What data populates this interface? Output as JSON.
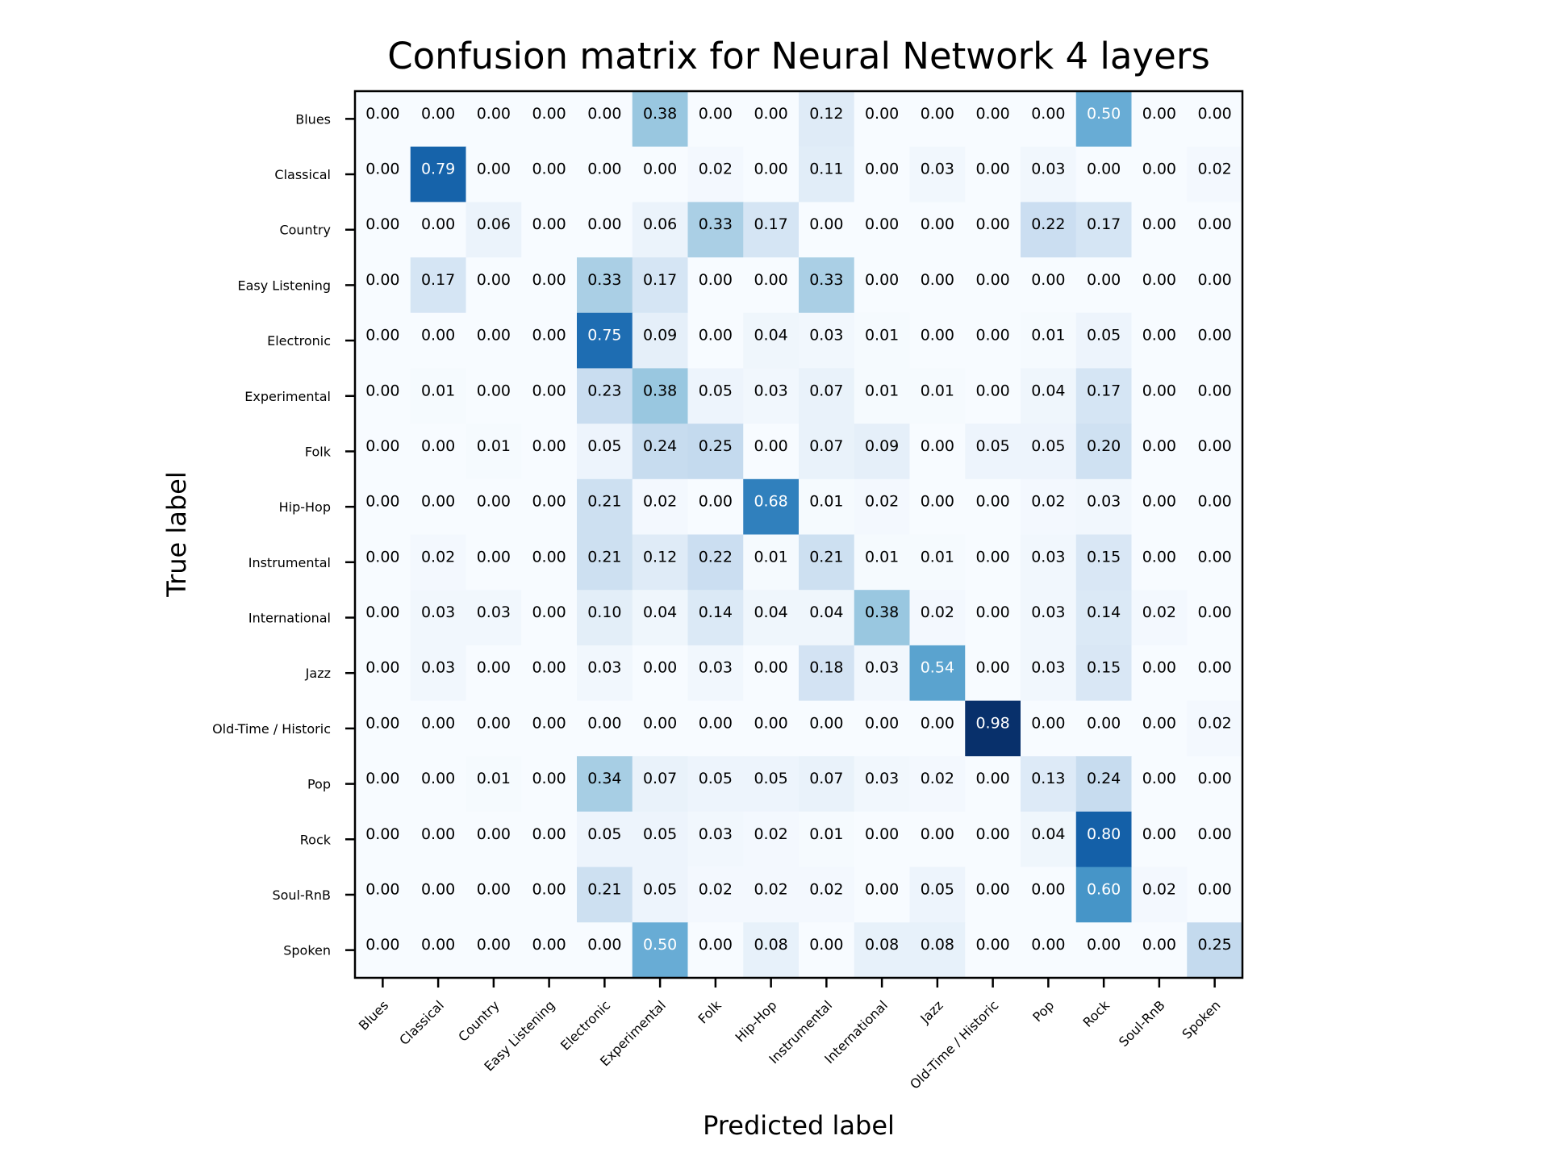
{
  "chart_data": {
    "type": "heatmap",
    "title": "Confusion matrix for Neural Network 4 layers",
    "xlabel": "Predicted label",
    "ylabel": "True label",
    "x_categories": [
      "Blues",
      "Classical",
      "Country",
      "Easy Listening",
      "Electronic",
      "Experimental",
      "Folk",
      "Hip-Hop",
      "Instrumental",
      "International",
      "Jazz",
      "Old-Time / Historic",
      "Pop",
      "Rock",
      "Soul-RnB",
      "Spoken"
    ],
    "y_categories": [
      "Blues",
      "Classical",
      "Country",
      "Easy Listening",
      "Electronic",
      "Experimental",
      "Folk",
      "Hip-Hop",
      "Instrumental",
      "International",
      "Jazz",
      "Old-Time / Historic",
      "Pop",
      "Rock",
      "Soul-RnB",
      "Spoken"
    ],
    "values": [
      [
        0.0,
        0.0,
        0.0,
        0.0,
        0.0,
        0.38,
        0.0,
        0.0,
        0.12,
        0.0,
        0.0,
        0.0,
        0.0,
        0.5,
        0.0,
        0.0
      ],
      [
        0.0,
        0.79,
        0.0,
        0.0,
        0.0,
        0.0,
        0.02,
        0.0,
        0.11,
        0.0,
        0.03,
        0.0,
        0.03,
        0.0,
        0.0,
        0.02
      ],
      [
        0.0,
        0.0,
        0.06,
        0.0,
        0.0,
        0.06,
        0.33,
        0.17,
        0.0,
        0.0,
        0.0,
        0.0,
        0.22,
        0.17,
        0.0,
        0.0
      ],
      [
        0.0,
        0.17,
        0.0,
        0.0,
        0.33,
        0.17,
        0.0,
        0.0,
        0.33,
        0.0,
        0.0,
        0.0,
        0.0,
        0.0,
        0.0,
        0.0
      ],
      [
        0.0,
        0.0,
        0.0,
        0.0,
        0.75,
        0.09,
        0.0,
        0.04,
        0.03,
        0.01,
        0.0,
        0.0,
        0.01,
        0.05,
        0.0,
        0.0
      ],
      [
        0.0,
        0.01,
        0.0,
        0.0,
        0.23,
        0.38,
        0.05,
        0.03,
        0.07,
        0.01,
        0.01,
        0.0,
        0.04,
        0.17,
        0.0,
        0.0
      ],
      [
        0.0,
        0.0,
        0.01,
        0.0,
        0.05,
        0.24,
        0.25,
        0.0,
        0.07,
        0.09,
        0.0,
        0.05,
        0.05,
        0.2,
        0.0,
        0.0
      ],
      [
        0.0,
        0.0,
        0.0,
        0.0,
        0.21,
        0.02,
        0.0,
        0.68,
        0.01,
        0.02,
        0.0,
        0.0,
        0.02,
        0.03,
        0.0,
        0.0
      ],
      [
        0.0,
        0.02,
        0.0,
        0.0,
        0.21,
        0.12,
        0.22,
        0.01,
        0.21,
        0.01,
        0.01,
        0.0,
        0.03,
        0.15,
        0.0,
        0.0
      ],
      [
        0.0,
        0.03,
        0.03,
        0.0,
        0.1,
        0.04,
        0.14,
        0.04,
        0.04,
        0.38,
        0.02,
        0.0,
        0.03,
        0.14,
        0.02,
        0.0
      ],
      [
        0.0,
        0.03,
        0.0,
        0.0,
        0.03,
        0.0,
        0.03,
        0.0,
        0.18,
        0.03,
        0.54,
        0.0,
        0.03,
        0.15,
        0.0,
        0.0
      ],
      [
        0.0,
        0.0,
        0.0,
        0.0,
        0.0,
        0.0,
        0.0,
        0.0,
        0.0,
        0.0,
        0.0,
        0.98,
        0.0,
        0.0,
        0.0,
        0.02
      ],
      [
        0.0,
        0.0,
        0.01,
        0.0,
        0.34,
        0.07,
        0.05,
        0.05,
        0.07,
        0.03,
        0.02,
        0.0,
        0.13,
        0.24,
        0.0,
        0.0
      ],
      [
        0.0,
        0.0,
        0.0,
        0.0,
        0.05,
        0.05,
        0.03,
        0.02,
        0.01,
        0.0,
        0.0,
        0.0,
        0.04,
        0.8,
        0.0,
        0.0
      ],
      [
        0.0,
        0.0,
        0.0,
        0.0,
        0.21,
        0.05,
        0.02,
        0.02,
        0.02,
        0.0,
        0.05,
        0.0,
        0.0,
        0.6,
        0.02,
        0.0
      ],
      [
        0.0,
        0.0,
        0.0,
        0.0,
        0.0,
        0.5,
        0.0,
        0.08,
        0.0,
        0.08,
        0.08,
        0.0,
        0.0,
        0.0,
        0.0,
        0.25
      ]
    ],
    "value_range": [
      0,
      0.98
    ],
    "colormap": "Blues",
    "grid": false,
    "legend": "none"
  }
}
